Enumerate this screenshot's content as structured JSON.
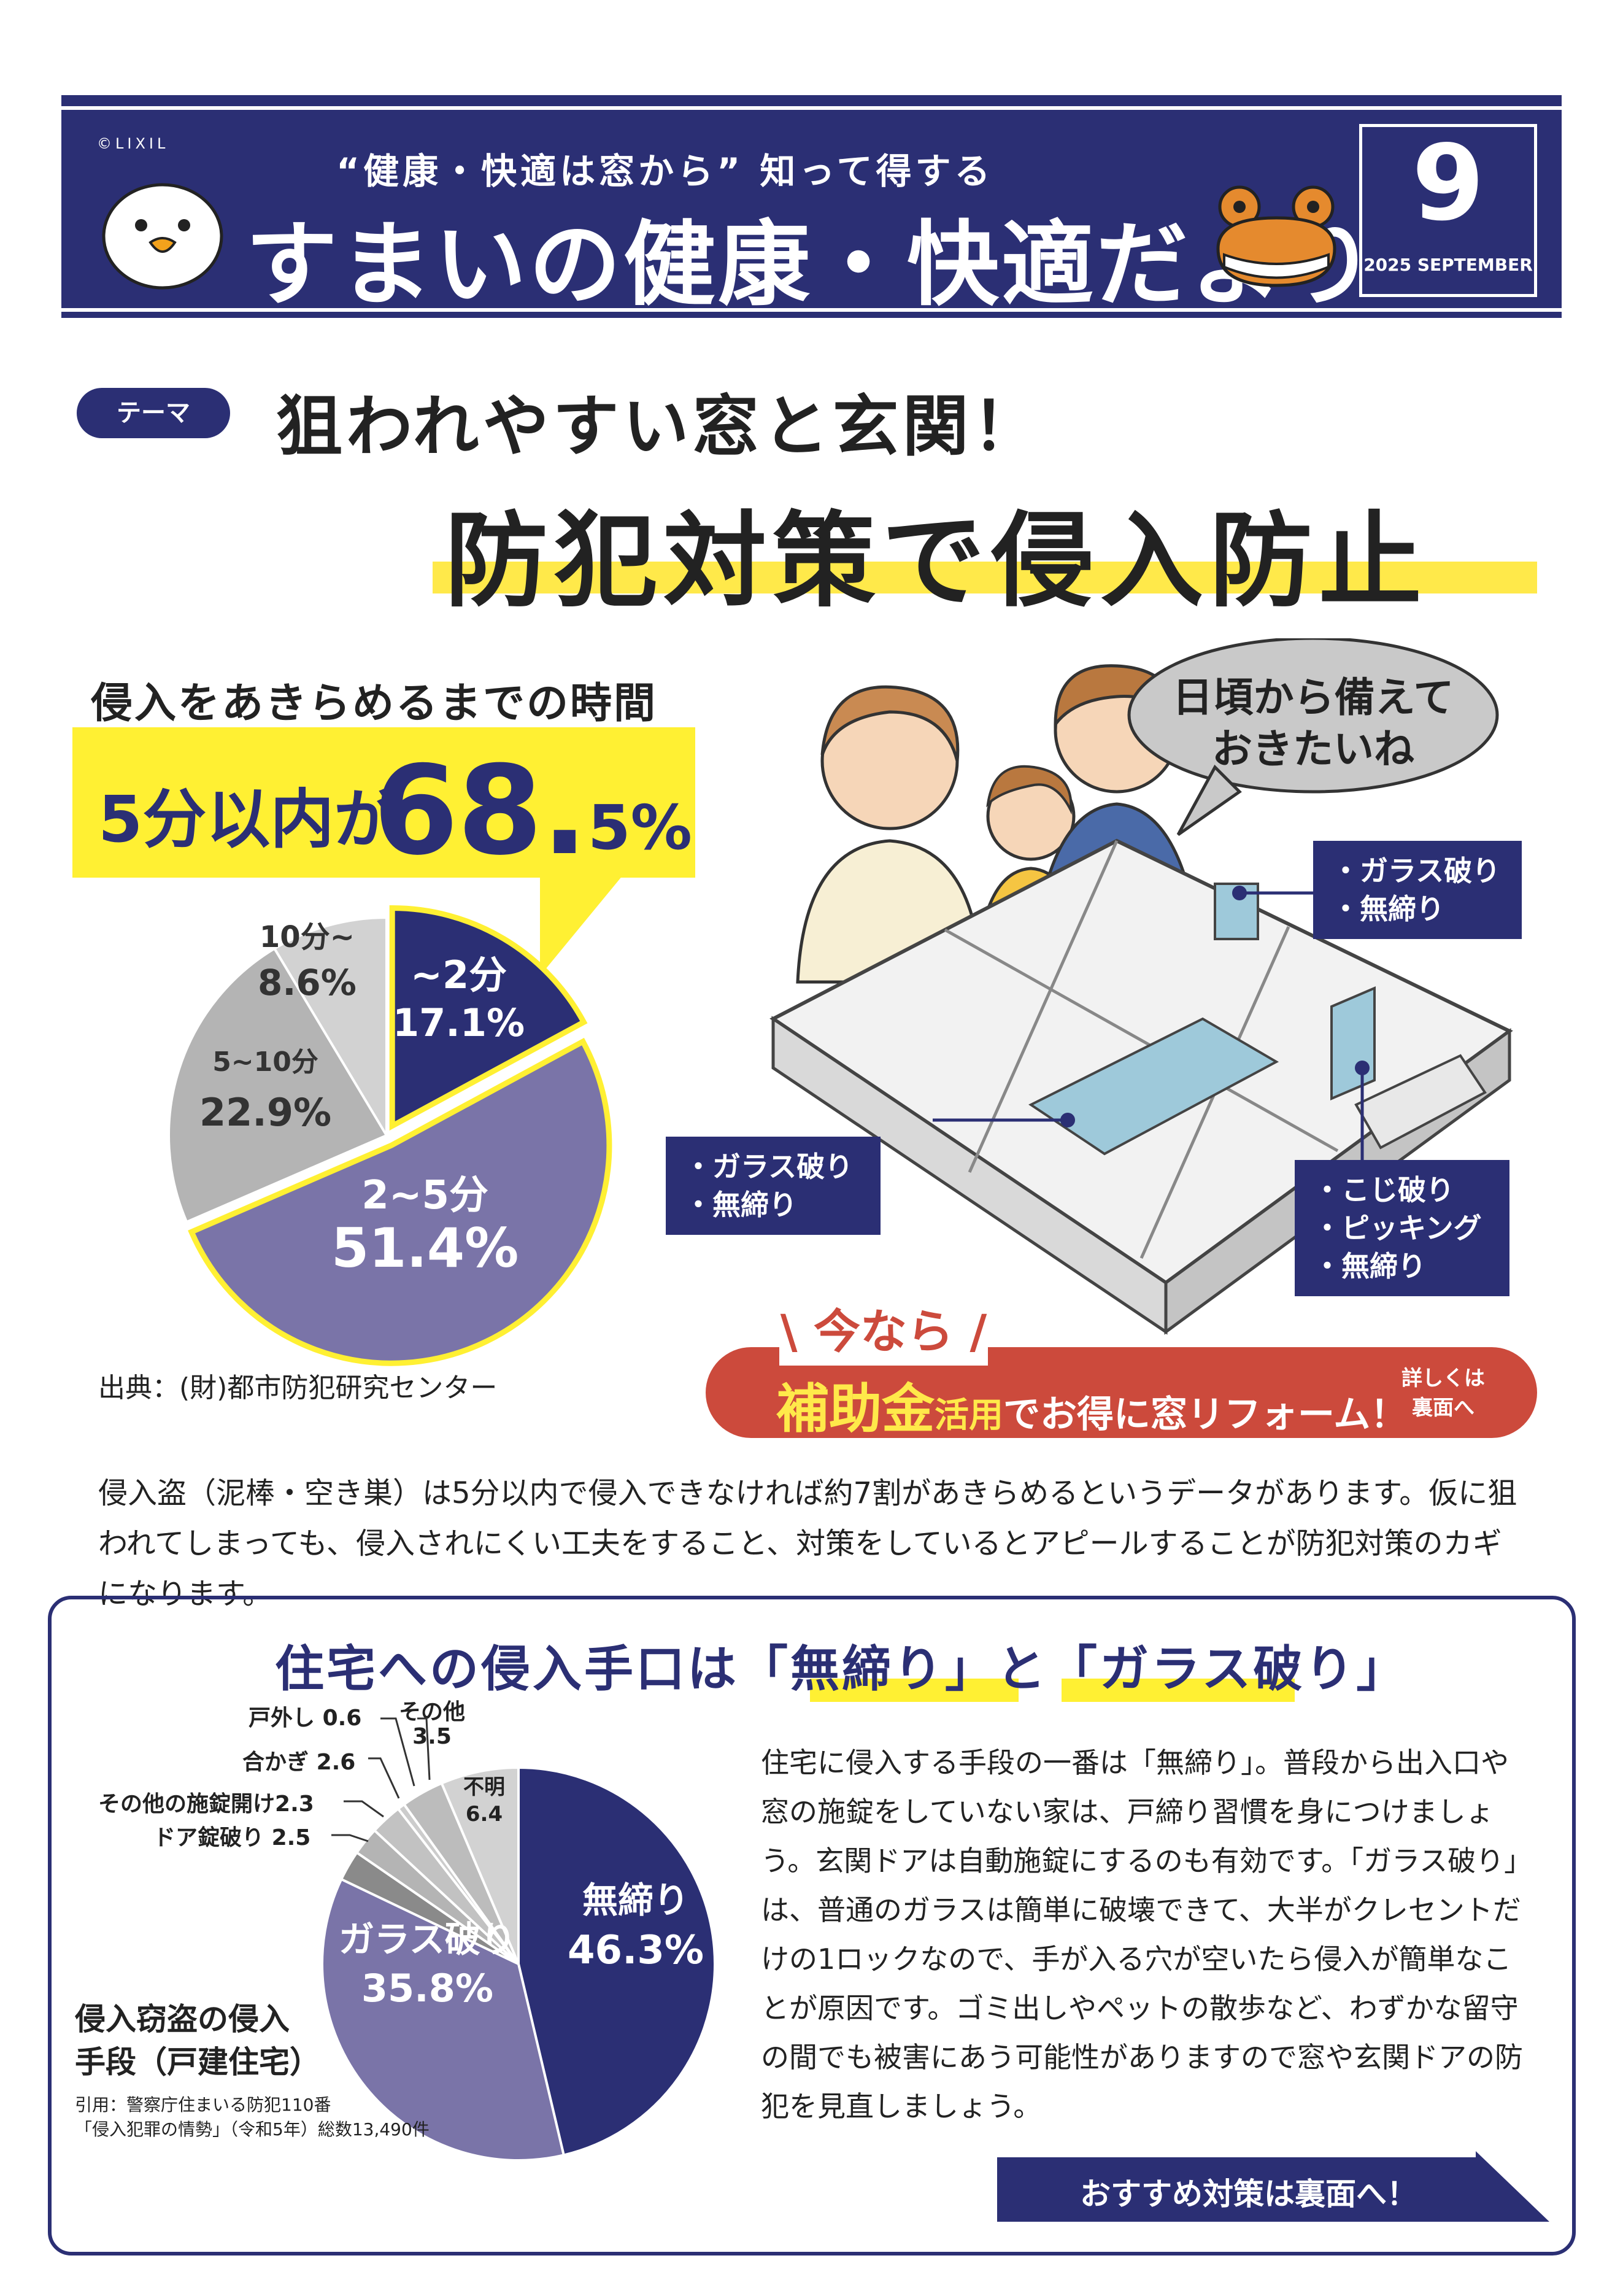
{
  "header": {
    "copyright": "©LIXIL",
    "subtitle": "“健康・快適は窓から” 知って得する",
    "title": "すまいの健康・快適だより",
    "month": "9",
    "month_label": "2025 SEPTEMBER"
  },
  "theme": {
    "pill": "テーマ",
    "line1": "狙われやすい窓と玄関！",
    "line2": "防犯対策で侵入防止"
  },
  "stat": {
    "heading": "侵入をあきらめるまでの時間",
    "prefix": "5分以内が",
    "big": "68.",
    "pct": "5%"
  },
  "illustration": {
    "bubble": [
      "日頃から備えて",
      "おきたいね"
    ],
    "tag_window_top": [
      "・ガラス破り",
      "・無締り"
    ],
    "tag_window_left": [
      "・ガラス破り",
      "・無締り"
    ],
    "tag_door": [
      "・こじ破り",
      "・ピッキング",
      "・無締り"
    ]
  },
  "banner": {
    "now": "今なら",
    "subsidy": "補助金",
    "use": "活用",
    "rest": "でお得に窓リフォーム！",
    "side": [
      "詳しくは",
      "裏面へ"
    ]
  },
  "source1": "出典：(財)都市防犯研究センター",
  "para1": "侵入盗（泥棒・空き巣）は5分以内で侵入できなければ約7割があきらめるというデータがあります。仮に狙われてしまっても、侵入されにくい工夫をすること、対策をしているとアピールすることが防犯対策のカギになります。",
  "section": {
    "title": "住宅への侵入手口は「無締り」と「ガラス破り」",
    "pie_title": [
      "侵入窃盗の侵入",
      "手段（戸建住宅）"
    ],
    "cite": [
      "引用：警察庁住まいる防犯110番",
      "「侵入犯罪の情勢」（令和5年）総数13,490件"
    ],
    "paragraph": "住宅に侵入する手段の一番は「無締り」。普段から出入口や窓の施錠をしていない家は、戸締り習慣を身につけましょう。玄関ドアは自動施錠にするのも有効です。「ガラス破り」は、普通のガラスは簡単に破壊できて、大半がクレセントだけの1ロックなので、手が入る穴が空いたら侵入が簡単なことが原因です。ゴミ出しやペットの散歩など、わずかな留守の間でも被害にあう可能性がありますので窓や玄関ドアの防犯を見直しましょう。",
    "cta": "おすすめ対策は裏面へ！"
  },
  "chart_data": [
    {
      "type": "pie",
      "title": "侵入をあきらめるまでの時間",
      "categories": [
        "~2分",
        "2~5分",
        "5~10分",
        "10分~"
      ],
      "values": [
        17.1,
        51.4,
        22.9,
        8.6
      ],
      "labels": [
        "17.1%",
        "51.4%",
        "22.9%",
        "8.6%"
      ],
      "colors": [
        "#2b2f74",
        "#7a74a8",
        "#b4b4b4",
        "#d2d2d2"
      ]
    },
    {
      "type": "pie",
      "title": "侵入窃盗の侵入手段（戸建住宅）",
      "categories": [
        "無締り",
        "ガラス破り",
        "ドア錠破り",
        "その他の施錠開け",
        "合かぎ",
        "戸外し",
        "その他",
        "不明"
      ],
      "values": [
        46.3,
        35.8,
        2.5,
        2.3,
        2.6,
        0.6,
        3.5,
        6.4
      ],
      "labels": [
        "46.3%",
        "35.8%",
        "2.5",
        "2.3",
        "2.6",
        "0.6",
        "3.5",
        "6.4"
      ],
      "colors": [
        "#2b2f74",
        "#7a74a8",
        "#8a8a8a",
        "#b4b4b4",
        "#c2c2c2",
        "#cccccc",
        "#bcbcbc",
        "#d2d2d2"
      ]
    }
  ]
}
